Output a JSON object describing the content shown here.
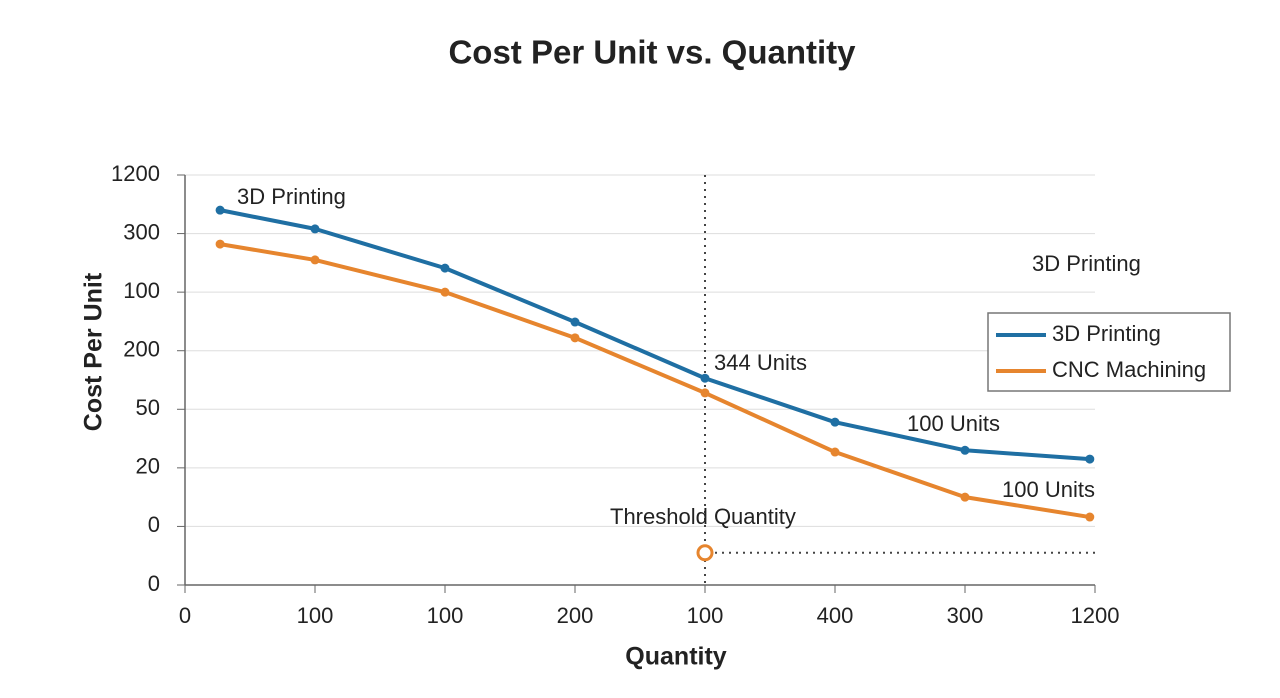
{
  "chart_data": {
    "type": "line",
    "title": "Cost Per Unit vs. Quantity",
    "xlabel": "Quantity",
    "ylabel": "Cost Per Unit",
    "xlim": [
      0,
      7
    ],
    "xticks": [
      0,
      {
        "value": 1,
        "label": "100"
      },
      {
        "value": 2,
        "label": "100"
      },
      {
        "value": 3,
        "label": "200"
      },
      {
        "value": 4,
        "label": "100"
      },
      {
        "value": 5,
        "label": "400"
      },
      {
        "value": 6,
        "label": "300"
      },
      {
        "value": 7,
        "label": "1200"
      }
    ],
    "ylim": [
      0,
      7
    ],
    "yticks": [
      0,
      {
        "value": 1,
        "label": "0"
      },
      {
        "value": 2,
        "label": "20"
      },
      {
        "value": 3,
        "label": "50"
      },
      {
        "value": 4,
        "label": "200"
      },
      {
        "value": 5,
        "label": "100"
      },
      {
        "value": 6,
        "label": "300"
      },
      {
        "value": 7,
        "label": "1200"
      }
    ],
    "grid": true,
    "legend": "right",
    "series": [
      {
        "name": "3D Printing",
        "color": "#1f6fa3",
        "x": [
          0.27,
          1,
          2,
          3,
          4,
          5,
          6,
          6.96
        ],
        "values": [
          6.4,
          6.08,
          5.41,
          4.49,
          3.53,
          2.78,
          2.3,
          2.15
        ]
      },
      {
        "name": "CNC Machining",
        "color": "#e6852e",
        "x": [
          0.27,
          1,
          2,
          3,
          4,
          5,
          6,
          6.96
        ],
        "values": [
          5.82,
          5.55,
          5.0,
          4.22,
          3.28,
          2.27,
          1.5,
          1.16
        ]
      }
    ],
    "threshold": {
      "x": 4,
      "y": 0.55,
      "label": "Threshold Quantity"
    },
    "annotations": [
      "3D Printing",
      "344 Units",
      "100 Units",
      "100 Units",
      "3D Printing"
    ]
  }
}
